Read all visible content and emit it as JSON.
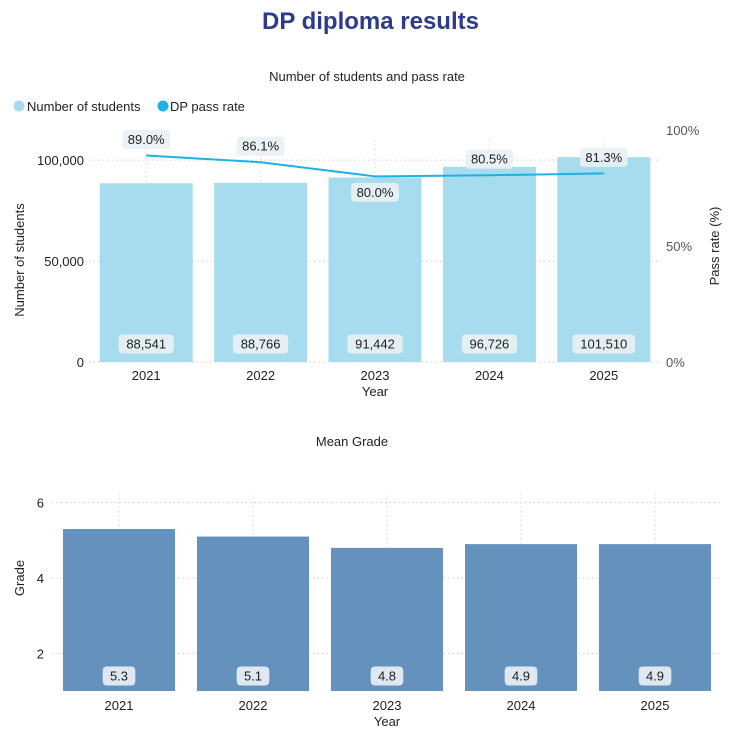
{
  "page_title": "DP diploma results",
  "chart_data": [
    {
      "type": "bar+line",
      "title": "Number of students and pass rate",
      "xlabel": "Year",
      "ylabel": "Number of students",
      "y2label": "Pass rate (%)",
      "categories": [
        "2021",
        "2022",
        "2023",
        "2024",
        "2025"
      ],
      "series": [
        {
          "name": "Number of students",
          "type": "bar",
          "axis": "left",
          "color": "#a6dcee",
          "values": [
            88541,
            88766,
            91442,
            96726,
            101510
          ],
          "labels": [
            "88,541",
            "88,766",
            "91,442",
            "96,726",
            "101,510"
          ]
        },
        {
          "name": "DP pass rate",
          "type": "line",
          "axis": "right",
          "color": "#1eb1e4",
          "values": [
            89.0,
            86.1,
            80.0,
            80.5,
            81.3
          ],
          "labels": [
            "89.0%",
            "86.1%",
            "80.0%",
            "80.5%",
            "81.3%"
          ]
        }
      ],
      "ylim": [
        0,
        110000
      ],
      "yticks": [
        0,
        50000,
        100000
      ],
      "yticklabels": [
        "0",
        "50,000",
        "100,000"
      ],
      "y2lim": [
        0,
        100
      ],
      "y2ticks": [
        0,
        50,
        100
      ],
      "y2ticklabels": [
        "0%",
        "50%",
        "100%"
      ],
      "legend": "top-left",
      "grid": true
    },
    {
      "type": "bar",
      "title": "Mean Grade",
      "xlabel": "Year",
      "ylabel": "Grade",
      "categories": [
        "2021",
        "2022",
        "2023",
        "2024",
        "2025"
      ],
      "values": [
        5.3,
        5.1,
        4.8,
        4.9,
        4.9
      ],
      "labels": [
        "5.3",
        "5.1",
        "4.8",
        "4.9",
        "4.9"
      ],
      "color": "#6592bd",
      "ylim": [
        1,
        7
      ],
      "yticks": [
        2,
        4,
        6
      ],
      "yticklabels": [
        "2",
        "4",
        "6"
      ],
      "grid": true
    }
  ]
}
